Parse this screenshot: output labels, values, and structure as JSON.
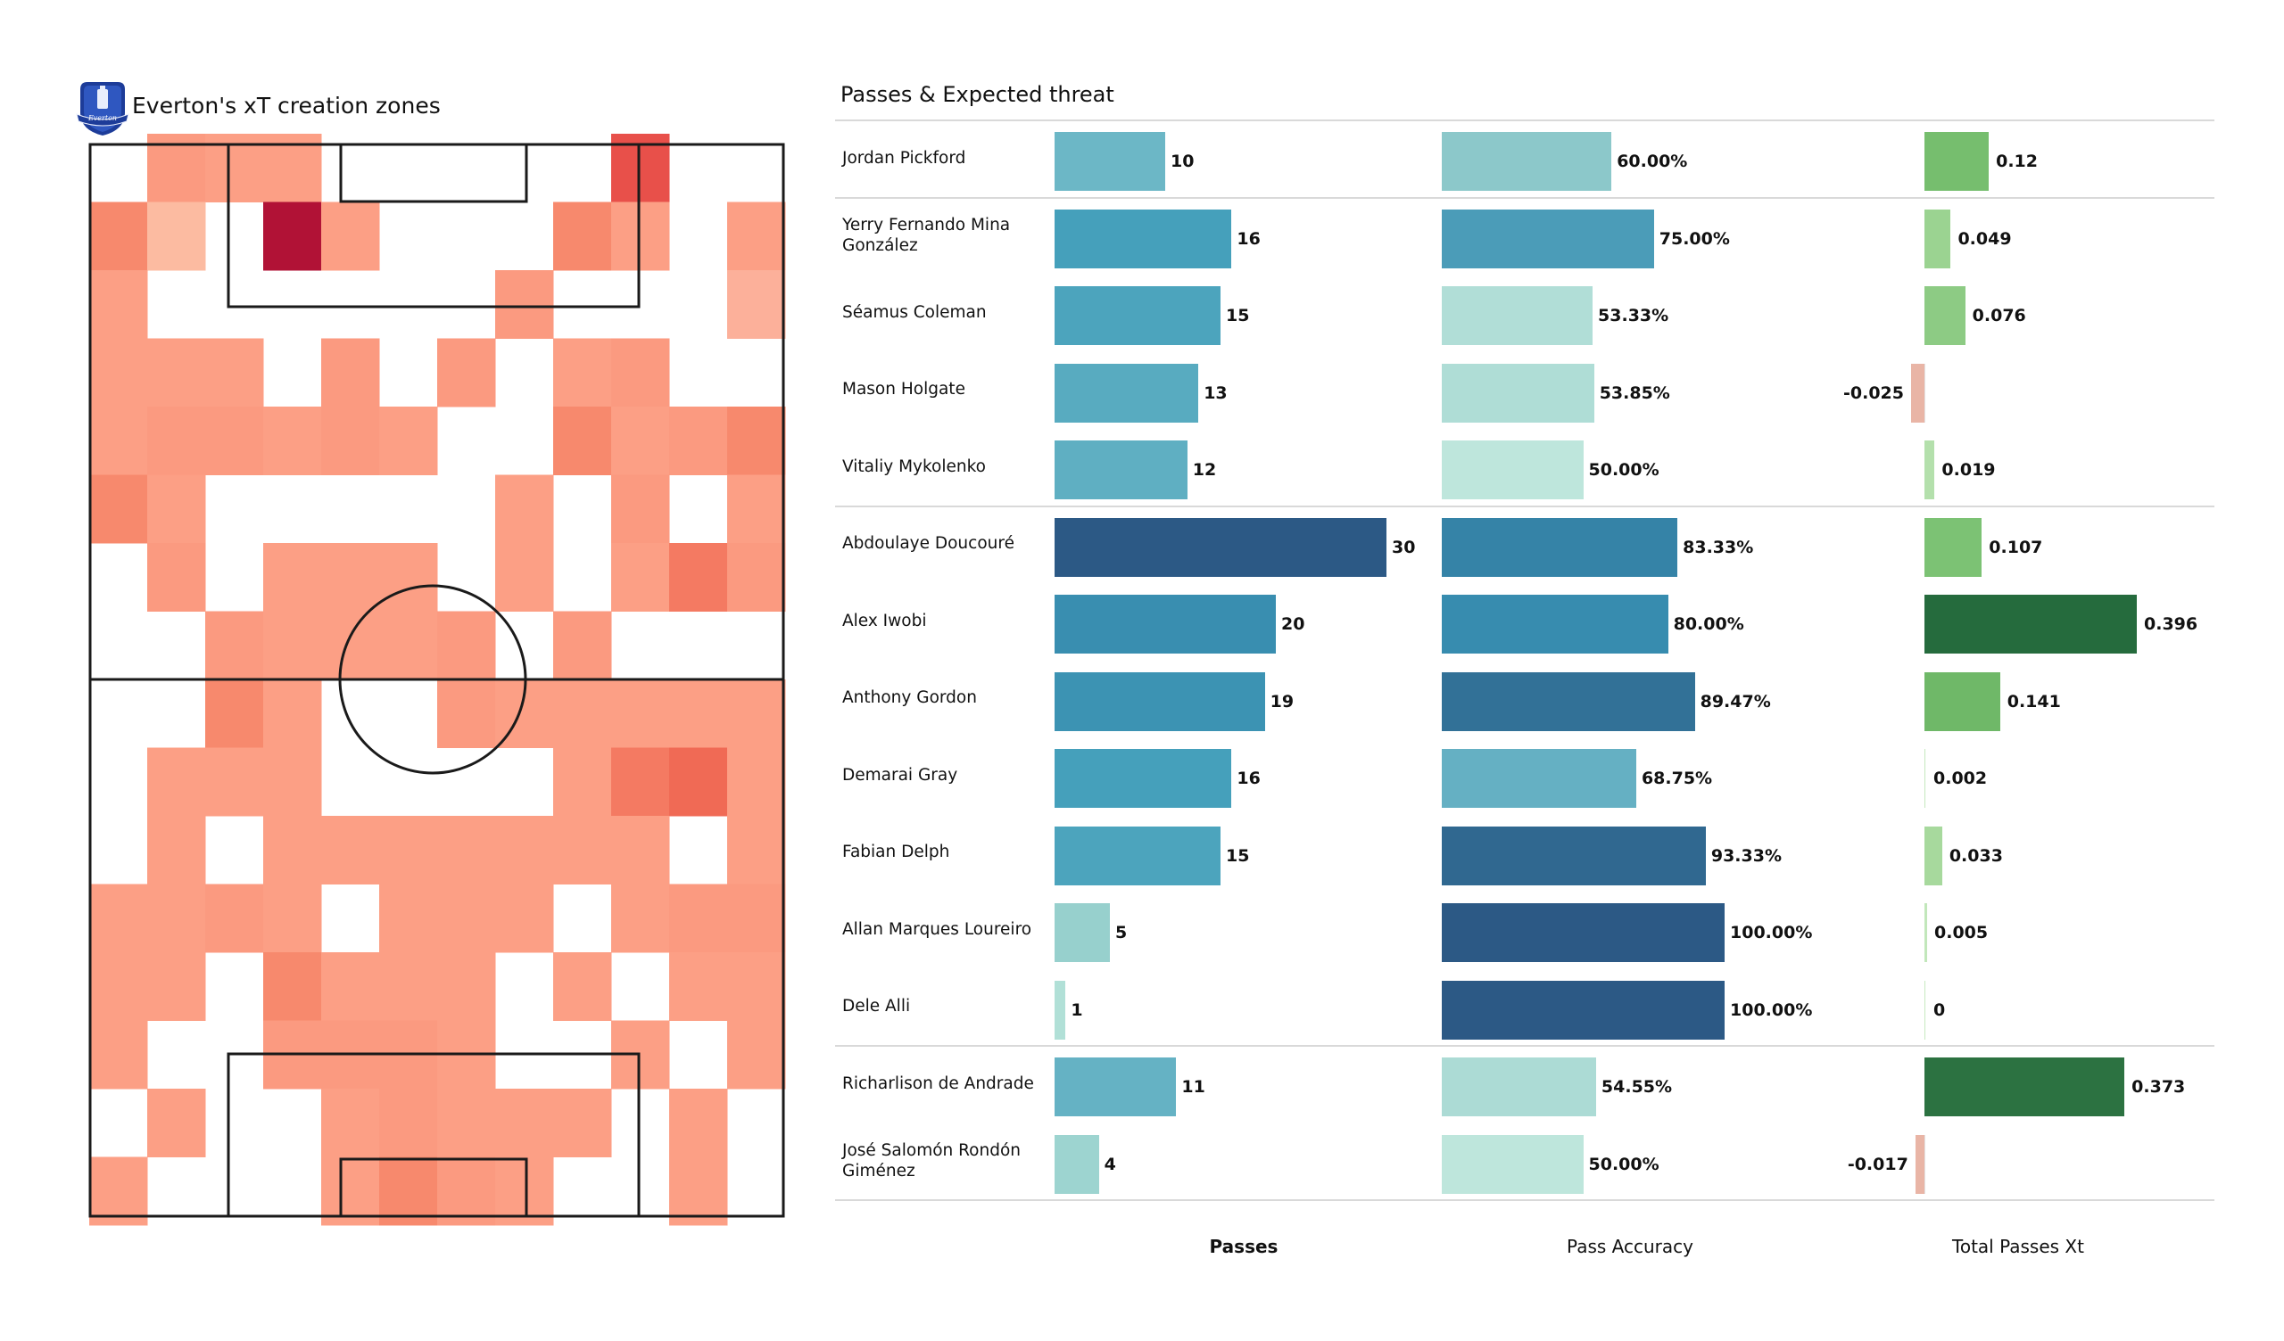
{
  "left_panel": {
    "title": "Everton's xT creation zones",
    "logo": "everton-crest-icon"
  },
  "right_panel": {
    "title": "Passes & Expected threat",
    "columns": [
      "Passes",
      "Pass Accuracy",
      "Total Passes Xt"
    ]
  },
  "chart_data": [
    {
      "type": "heatmap",
      "title": "Everton's xT creation zones",
      "grid_rows": 16,
      "grid_cols": 12,
      "value_scale": "relative intensity 0 (no passes) to 10 (highest xT)",
      "colormap": "Reds",
      "values": [
        [
          0,
          4,
          3,
          3,
          0,
          0,
          0,
          0,
          0,
          8,
          0,
          0
        ],
        [
          5,
          1,
          0,
          10,
          3,
          0,
          0,
          0,
          5,
          3,
          0,
          3
        ],
        [
          3,
          0,
          0,
          0,
          0,
          0,
          0,
          4,
          0,
          0,
          0,
          2
        ],
        [
          3,
          3,
          3,
          0,
          4,
          0,
          4,
          0,
          3,
          4,
          0,
          0
        ],
        [
          3,
          4,
          4,
          3,
          4,
          3,
          0,
          0,
          5,
          3,
          4,
          5
        ],
        [
          5,
          3,
          0,
          0,
          0,
          0,
          0,
          3,
          0,
          4,
          0,
          3
        ],
        [
          0,
          4,
          0,
          3,
          3,
          3,
          0,
          3,
          0,
          3,
          6,
          4
        ],
        [
          0,
          0,
          4,
          3,
          3,
          3,
          4,
          0,
          4,
          0,
          0,
          0
        ],
        [
          0,
          0,
          5,
          3,
          0,
          0,
          4,
          3,
          3,
          3,
          3,
          3
        ],
        [
          0,
          3,
          3,
          3,
          0,
          0,
          0,
          0,
          3,
          6,
          7,
          3
        ],
        [
          0,
          3,
          0,
          3,
          3,
          3,
          3,
          3,
          3,
          3,
          0,
          3
        ],
        [
          3,
          3,
          4,
          3,
          0,
          3,
          3,
          3,
          0,
          3,
          4,
          4
        ],
        [
          3,
          3,
          0,
          5,
          3,
          3,
          3,
          0,
          3,
          0,
          3,
          3
        ],
        [
          3,
          0,
          0,
          4,
          4,
          4,
          3,
          0,
          0,
          3,
          0,
          3
        ],
        [
          0,
          3,
          0,
          0,
          3,
          4,
          3,
          3,
          3,
          0,
          3,
          0
        ],
        [
          3,
          0,
          0,
          0,
          3,
          5,
          4,
          3,
          0,
          0,
          3,
          0
        ]
      ]
    },
    {
      "type": "bar",
      "title": "Passes & Expected threat",
      "orientation": "horizontal",
      "groups": [
        {
          "players": [
            "Jordan Pickford"
          ]
        },
        {
          "players": [
            "Yerry Fernando Mina González",
            "Séamus Coleman",
            "Mason Holgate",
            "Vitaliy Mykolenko"
          ]
        },
        {
          "players": [
            "Abdoulaye Doucouré",
            "Alex Iwobi",
            "Anthony Gordon",
            "Demarai Gray",
            "Fabian Delph",
            "Allan Marques Loureiro",
            "Dele Alli"
          ]
        },
        {
          "players": [
            "Richarlison de Andrade",
            "José Salomón Rondón Giménez"
          ]
        }
      ],
      "categories": [
        "Jordan Pickford",
        "Yerry Fernando Mina González",
        "Séamus Coleman",
        "Mason Holgate",
        "Vitaliy Mykolenko",
        "Abdoulaye Doucouré",
        "Alex Iwobi",
        "Anthony Gordon",
        "Demarai Gray",
        "Fabian Delph",
        "Allan Marques Loureiro",
        "Dele Alli",
        "Richarlison de Andrade",
        "José Salomón Rondón Giménez"
      ],
      "series": [
        {
          "name": "Passes",
          "values": [
            10,
            16,
            15,
            13,
            12,
            30,
            20,
            19,
            16,
            15,
            5,
            1,
            11,
            4
          ],
          "labels": [
            "10",
            "16",
            "15",
            "13",
            "12",
            "30",
            "20",
            "19",
            "16",
            "15",
            "5",
            "1",
            "11",
            "4"
          ],
          "colormap": "teal-blue",
          "xlim": [
            0,
            30
          ]
        },
        {
          "name": "Pass Accuracy",
          "values": [
            60.0,
            75.0,
            53.33,
            53.85,
            50.0,
            83.33,
            80.0,
            89.47,
            68.75,
            93.33,
            100.0,
            100.0,
            54.55,
            50.0
          ],
          "labels": [
            "60.00%",
            "75.00%",
            "53.33%",
            "53.85%",
            "50.00%",
            "83.33%",
            "80.00%",
            "89.47%",
            "68.75%",
            "93.33%",
            "100.00%",
            "100.00%",
            "54.55%",
            "50.00%"
          ],
          "colormap": "teal-blue",
          "xlim": [
            0,
            100
          ]
        },
        {
          "name": "Total Passes Xt",
          "values": [
            0.12,
            0.049,
            0.076,
            -0.025,
            0.019,
            0.107,
            0.396,
            0.141,
            0.002,
            0.033,
            0.005,
            0,
            0.373,
            -0.017
          ],
          "labels": [
            "0.12",
            "0.049",
            "0.076",
            "-0.025",
            "0.019",
            "0.107",
            "0.396",
            "0.141",
            "0.002",
            "0.033",
            "0.005",
            "0",
            "0.373",
            "-0.017"
          ],
          "colormap": "greens (positive) / salmon (negative)",
          "xlim": [
            -0.025,
            0.396
          ]
        }
      ]
    }
  ],
  "colors": {
    "positive_xt_dark": "#256b3d",
    "negative_xt": "#e9b5a6",
    "passes_dark": "#2c5985",
    "pitch_lines": "#1a1a1a"
  }
}
